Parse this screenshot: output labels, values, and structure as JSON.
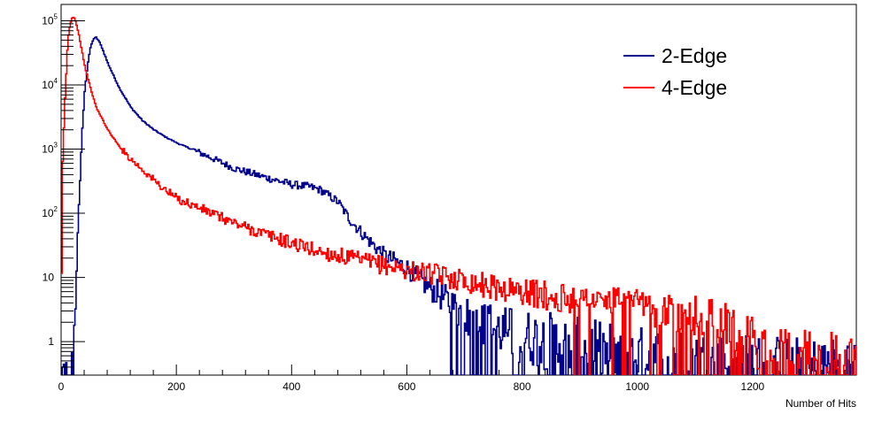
{
  "chart_data": {
    "type": "line",
    "title": "",
    "xlabel": "Number of Hits",
    "ylabel": "",
    "xlim": [
      0,
      1380
    ],
    "ylim": [
      0.3,
      180000
    ],
    "y_scale": "log",
    "grid": false,
    "legend_position": "top-right",
    "x_ticks": [
      0,
      200,
      400,
      600,
      800,
      1000,
      1200
    ],
    "x_tick_labels": [
      "0",
      "200",
      "400",
      "600",
      "800",
      "1000",
      "1200"
    ],
    "y_ticks": [
      1,
      10,
      100,
      1000,
      10000,
      100000
    ],
    "y_tick_labels": [
      {
        "base": "1",
        "exp": ""
      },
      {
        "base": "10",
        "exp": ""
      },
      {
        "base": "10",
        "exp": "2"
      },
      {
        "base": "10",
        "exp": "3"
      },
      {
        "base": "10",
        "exp": "4"
      },
      {
        "base": "10",
        "exp": "5"
      }
    ],
    "series": [
      {
        "name": "2-Edge",
        "color": "#00008b",
        "x": [
          0,
          20,
          25,
          30,
          35,
          40,
          45,
          50,
          55,
          60,
          65,
          70,
          80,
          90,
          100,
          120,
          140,
          160,
          180,
          200,
          250,
          300,
          350,
          400,
          430,
          450,
          480,
          500,
          530,
          560,
          600,
          630,
          660,
          690,
          720,
          760,
          800,
          850,
          900,
          950,
          1000,
          1100,
          1200,
          1300,
          1380
        ],
        "y": [
          0.3,
          0.3,
          8,
          120,
          1500,
          8000,
          20000,
          38000,
          52000,
          55000,
          48000,
          38000,
          22000,
          14000,
          9000,
          4500,
          2800,
          2000,
          1550,
          1250,
          800,
          500,
          370,
          280,
          260,
          230,
          150,
          80,
          40,
          22,
          14,
          8,
          5,
          3,
          2,
          1.5,
          1.2,
          1,
          0.8,
          0.7,
          0.6,
          0.5,
          0.45,
          0.4,
          0.4
        ]
      },
      {
        "name": "4-Edge",
        "color": "#ff0000",
        "x": [
          0,
          2,
          5,
          8,
          10,
          12,
          15,
          18,
          20,
          22,
          25,
          30,
          35,
          40,
          50,
          60,
          80,
          100,
          120,
          140,
          160,
          180,
          200,
          250,
          300,
          350,
          400,
          450,
          500,
          550,
          600,
          650,
          700,
          750,
          800,
          850,
          900,
          950,
          1000,
          1050,
          1100,
          1150,
          1200,
          1250,
          1300,
          1380
        ],
        "y": [
          8,
          600,
          4000,
          15000,
          35000,
          60000,
          90000,
          110000,
          115000,
          110000,
          95000,
          60000,
          35000,
          20000,
          9000,
          4500,
          2000,
          1100,
          700,
          480,
          330,
          230,
          170,
          110,
          70,
          48,
          34,
          25,
          20,
          16,
          13,
          11,
          9,
          7,
          6,
          5,
          4.5,
          4,
          3.5,
          3,
          2.5,
          2,
          0.9,
          0.6,
          0.5,
          0.5
        ]
      }
    ]
  }
}
